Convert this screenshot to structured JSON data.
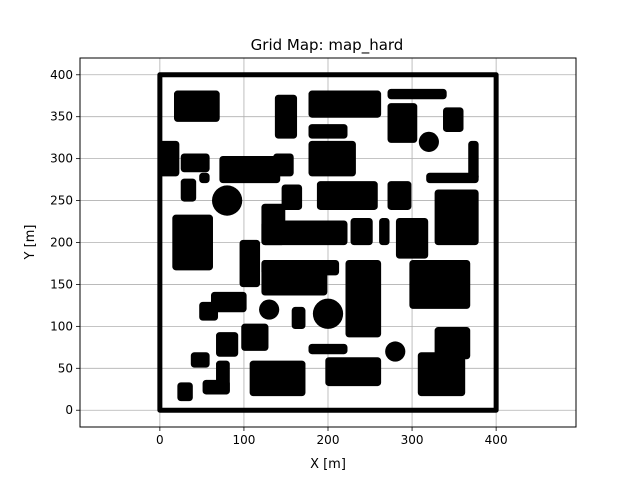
{
  "chart_data": {
    "type": "scatter",
    "title": "Grid Map: map_hard",
    "xlabel": "X [m]",
    "ylabel": "Y [m]",
    "xlim": [
      -95,
      495
    ],
    "ylim": [
      -20,
      420
    ],
    "xticks": [
      0,
      100,
      200,
      300,
      400
    ],
    "yticks": [
      0,
      50,
      100,
      150,
      200,
      250,
      300,
      350,
      400
    ],
    "grid": true,
    "aspect": "equal",
    "marker_color": "#000000",
    "boundary": {
      "x": [
        0,
        400
      ],
      "y": [
        0,
        400
      ]
    },
    "obstacles": [
      {
        "shape": "rect",
        "x": [
          18,
          70
        ],
        "y": [
          345,
          380
        ]
      },
      {
        "shape": "rect",
        "x": [
          138,
          162
        ],
        "y": [
          325,
          375
        ]
      },
      {
        "shape": "rect",
        "x": [
          178,
          262
        ],
        "y": [
          350,
          380
        ]
      },
      {
        "shape": "rect",
        "x": [
          272,
          305
        ],
        "y": [
          320,
          365
        ]
      },
      {
        "shape": "rect",
        "x": [
          272,
          340
        ],
        "y": [
          372,
          382
        ]
      },
      {
        "shape": "rect",
        "x": [
          338,
          360
        ],
        "y": [
          333,
          360
        ]
      },
      {
        "shape": "rect",
        "x": [
          178,
          222
        ],
        "y": [
          325,
          340
        ]
      },
      {
        "shape": "circle",
        "cx": 320,
        "cy": 320,
        "r": 12
      },
      {
        "shape": "rect",
        "x": [
          0,
          22
        ],
        "y": [
          280,
          320
        ]
      },
      {
        "shape": "rect",
        "x": [
          26,
          58
        ],
        "y": [
          285,
          305
        ]
      },
      {
        "shape": "rect",
        "x": [
          72,
          142
        ],
        "y": [
          272,
          302
        ]
      },
      {
        "shape": "rect",
        "x": [
          136,
          158
        ],
        "y": [
          280,
          305
        ]
      },
      {
        "shape": "rect",
        "x": [
          178,
          232
        ],
        "y": [
          280,
          320
        ]
      },
      {
        "shape": "rect",
        "x": [
          368,
          378
        ],
        "y": [
          275,
          320
        ]
      },
      {
        "shape": "rect",
        "x": [
          318,
          378
        ],
        "y": [
          272,
          282
        ]
      },
      {
        "shape": "rect",
        "x": [
          26,
          42
        ],
        "y": [
          250,
          275
        ]
      },
      {
        "shape": "rect",
        "x": [
          48,
          58
        ],
        "y": [
          272,
          282
        ]
      },
      {
        "shape": "circle",
        "cx": 80,
        "cy": 250,
        "r": 18
      },
      {
        "shape": "rect",
        "x": [
          146,
          168
        ],
        "y": [
          240,
          268
        ]
      },
      {
        "shape": "rect",
        "x": [
          188,
          258
        ],
        "y": [
          240,
          272
        ]
      },
      {
        "shape": "rect",
        "x": [
          272,
          298
        ],
        "y": [
          240,
          272
        ]
      },
      {
        "shape": "rect",
        "x": [
          328,
          378
        ],
        "y": [
          198,
          262
        ]
      },
      {
        "shape": "rect",
        "x": [
          122,
          148
        ],
        "y": [
          198,
          245
        ]
      },
      {
        "shape": "rect",
        "x": [
          122,
          222
        ],
        "y": [
          198,
          225
        ]
      },
      {
        "shape": "rect",
        "x": [
          228,
          252
        ],
        "y": [
          198,
          228
        ]
      },
      {
        "shape": "rect",
        "x": [
          262,
          272
        ],
        "y": [
          198,
          228
        ]
      },
      {
        "shape": "rect",
        "x": [
          282,
          318
        ],
        "y": [
          182,
          228
        ]
      },
      {
        "shape": "rect",
        "x": [
          16,
          62
        ],
        "y": [
          168,
          232
        ]
      },
      {
        "shape": "rect",
        "x": [
          96,
          118
        ],
        "y": [
          148,
          202
        ]
      },
      {
        "shape": "rect",
        "x": [
          122,
          212
        ],
        "y": [
          162,
          178
        ]
      },
      {
        "shape": "rect",
        "x": [
          122,
          198
        ],
        "y": [
          138,
          178
        ]
      },
      {
        "shape": "rect",
        "x": [
          222,
          262
        ],
        "y": [
          88,
          178
        ]
      },
      {
        "shape": "rect",
        "x": [
          298,
          368
        ],
        "y": [
          122,
          178
        ]
      },
      {
        "shape": "rect",
        "x": [
          62,
          102
        ],
        "y": [
          118,
          140
        ]
      },
      {
        "shape": "rect",
        "x": [
          48,
          68
        ],
        "y": [
          108,
          128
        ]
      },
      {
        "shape": "circle",
        "cx": 130,
        "cy": 120,
        "r": 12
      },
      {
        "shape": "rect",
        "x": [
          158,
          172
        ],
        "y": [
          98,
          122
        ]
      },
      {
        "shape": "circle",
        "cx": 200,
        "cy": 115,
        "r": 18
      },
      {
        "shape": "rect",
        "x": [
          328,
          368
        ],
        "y": [
          62,
          98
        ]
      },
      {
        "shape": "rect",
        "x": [
          98,
          128
        ],
        "y": [
          72,
          102
        ]
      },
      {
        "shape": "rect",
        "x": [
          68,
          92
        ],
        "y": [
          65,
          92
        ]
      },
      {
        "shape": "rect",
        "x": [
          178,
          222
        ],
        "y": [
          68,
          78
        ]
      },
      {
        "shape": "circle",
        "cx": 280,
        "cy": 70,
        "r": 12
      },
      {
        "shape": "rect",
        "x": [
          38,
          58
        ],
        "y": [
          52,
          68
        ]
      },
      {
        "shape": "rect",
        "x": [
          68,
          82
        ],
        "y": [
          20,
          58
        ]
      },
      {
        "shape": "rect",
        "x": [
          52,
          82
        ],
        "y": [
          20,
          35
        ]
      },
      {
        "shape": "rect",
        "x": [
          108,
          172
        ],
        "y": [
          18,
          58
        ]
      },
      {
        "shape": "rect",
        "x": [
          198,
          262
        ],
        "y": [
          30,
          62
        ]
      },
      {
        "shape": "rect",
        "x": [
          308,
          362
        ],
        "y": [
          18,
          68
        ]
      },
      {
        "shape": "rect",
        "x": [
          22,
          38
        ],
        "y": [
          12,
          32
        ]
      }
    ]
  }
}
